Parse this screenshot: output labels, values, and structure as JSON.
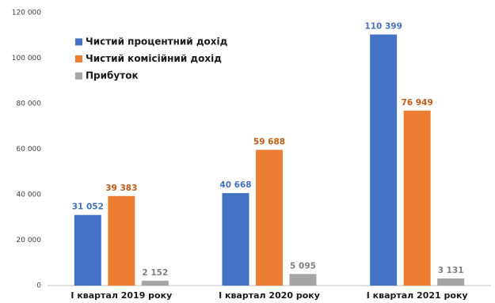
{
  "chart_data": {
    "type": "bar",
    "categories": [
      "І квартал 2019 року",
      "І квартал 2020 року",
      "І квартал 2021 року"
    ],
    "series": [
      {
        "name": "Чистий процентний дохід",
        "color": "#4472c4",
        "values": [
          31052,
          40668,
          110399
        ],
        "value_labels": [
          "31 052",
          "40 668",
          "110 399"
        ]
      },
      {
        "name": "Чистий комісійний дохід",
        "color": "#ed7d31",
        "values": [
          39383,
          59688,
          76949
        ],
        "value_labels": [
          "39 383",
          "59 688",
          "76 949"
        ]
      },
      {
        "name": "Прибуток",
        "color": "#a5a5a5",
        "values": [
          2152,
          5095,
          3131
        ],
        "value_labels": [
          "2 152",
          "5 095",
          "3 131"
        ]
      }
    ],
    "ylim": [
      0,
      120000
    ],
    "yticks": [
      0,
      {
        "value": 20000,
        "label": "20 000"
      },
      {
        "value": 40000,
        "label": "40 000"
      },
      {
        "value": 60000,
        "label": "60 000"
      },
      {
        "value": 80000,
        "label": "80 000"
      },
      {
        "value": 100000,
        "label": "100 000"
      },
      {
        "value": 120000,
        "label": "120 000"
      }
    ],
    "grid": false,
    "legend": "upper-left"
  }
}
